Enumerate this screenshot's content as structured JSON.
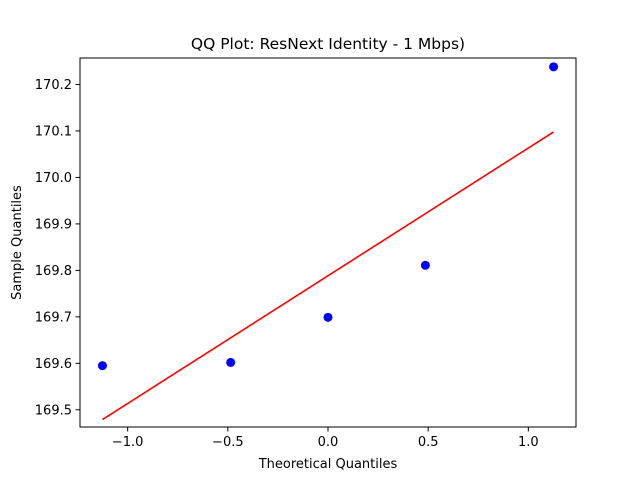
{
  "chart_data": {
    "type": "scatter",
    "title": "QQ Plot: ResNext Identity - 1 Mbps)",
    "xlabel": "Theoretical Quantiles",
    "ylabel": "Sample Quantiles",
    "xlim": [
      -1.238,
      1.238
    ],
    "ylim": [
      169.463,
      170.257
    ],
    "x_ticks": [
      -1.0,
      -0.5,
      0.0,
      0.5,
      1.0
    ],
    "x_tick_labels": [
      "−1.0",
      "−0.5",
      "0.0",
      "0.5",
      "1.0"
    ],
    "y_ticks": [
      169.5,
      169.6,
      169.7,
      169.8,
      169.9,
      170.0,
      170.1,
      170.2
    ],
    "y_tick_labels": [
      "169.5",
      "169.6",
      "169.7",
      "169.8",
      "169.9",
      "170.0",
      "170.1",
      "170.2"
    ],
    "grid": false,
    "points": {
      "color": "#0000ff",
      "x": [
        -1.126,
        -0.486,
        0.0,
        0.486,
        1.126
      ],
      "y": [
        169.595,
        169.602,
        169.699,
        169.811,
        170.238
      ]
    },
    "fit_line": {
      "color": "#ff0000",
      "x": [
        -1.126,
        1.126
      ],
      "y": [
        169.479,
        170.098
      ]
    }
  }
}
